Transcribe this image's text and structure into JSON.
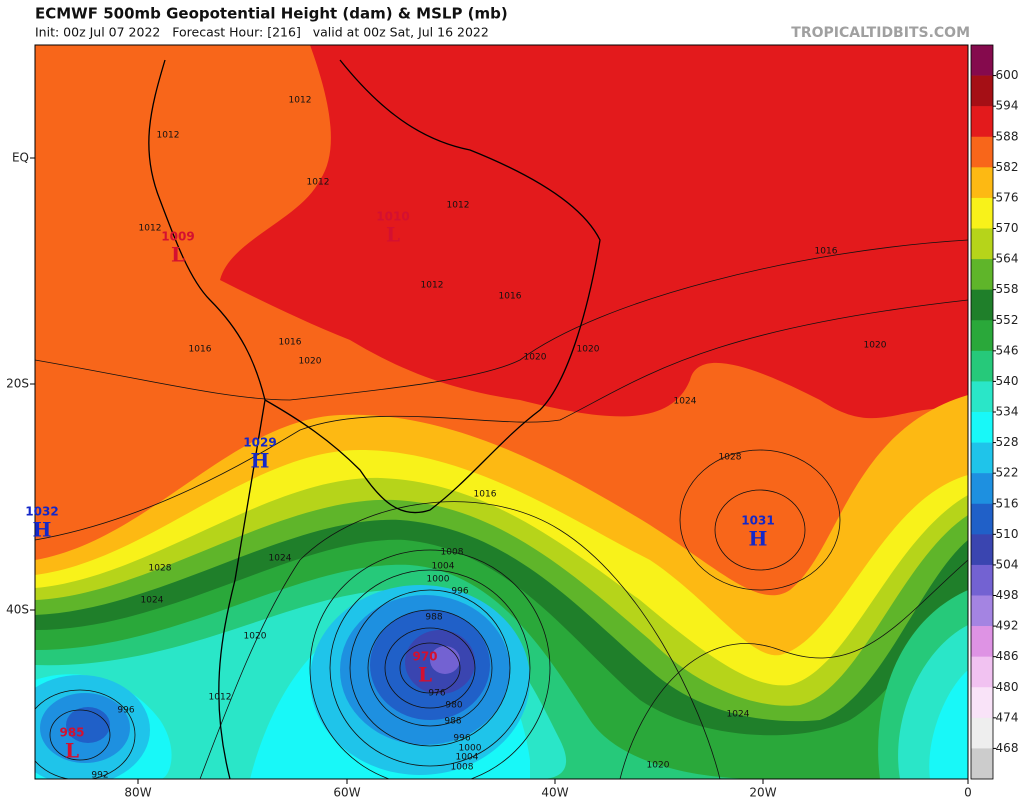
{
  "header": {
    "title": "ECMWF 500mb Geopotential Height (dam) & MSLP (mb)",
    "subtitle": "Init: 00z Jul 07 2022   Forecast Hour: [216]   valid at 00z Sat, Jul 16 2022",
    "source": "TROPICALTIDBITS.COM"
  },
  "axes": {
    "latitude_labels": [
      "EQ",
      "20S",
      "40S"
    ],
    "longitude_labels": [
      "80W",
      "60W",
      "40W",
      "20W",
      "0"
    ]
  },
  "pressure_centers": [
    {
      "letter": "H",
      "value": 1032
    },
    {
      "letter": "H",
      "value": 1029
    },
    {
      "letter": "L",
      "value": 1010
    },
    {
      "letter": "L",
      "value": 1009
    },
    {
      "letter": "H",
      "value": 1031
    },
    {
      "letter": "L",
      "value": 970
    },
    {
      "letter": "L",
      "value": 985
    }
  ],
  "isobar_labels": [
    1012,
    1012,
    1012,
    1012,
    1012,
    1012,
    1016,
    1016,
    1016,
    1016,
    1020,
    1020,
    1020,
    1020,
    1024,
    1028,
    1016,
    1008,
    1004,
    1000,
    996,
    1028,
    1024,
    1024,
    1020,
    1024,
    1020,
    996,
    992,
    988,
    976,
    980,
    988,
    996,
    1000,
    1004,
    1008,
    1012
  ],
  "colorbar": {
    "levels": [
      600,
      594,
      588,
      582,
      576,
      570,
      564,
      558,
      552,
      546,
      540,
      534,
      528,
      522,
      516,
      510,
      504,
      498,
      492,
      486,
      480,
      474,
      468
    ],
    "colors": [
      "#850a4d",
      "#a50f15",
      "#e31a1c",
      "#f8661a",
      "#fdb913",
      "#f8f21a",
      "#b6d41a",
      "#5fb52a",
      "#1f7f2a",
      "#2aa83a",
      "#26c97a",
      "#2ae6c8",
      "#18f8f8",
      "#1fc4ea",
      "#1e90e0",
      "#2060c8",
      "#3a45b0",
      "#7362d2",
      "#a484e2",
      "#de93e4",
      "#f1c2f1",
      "#f9e3f8",
      "#eeeeee",
      "#cccccc"
    ]
  }
}
